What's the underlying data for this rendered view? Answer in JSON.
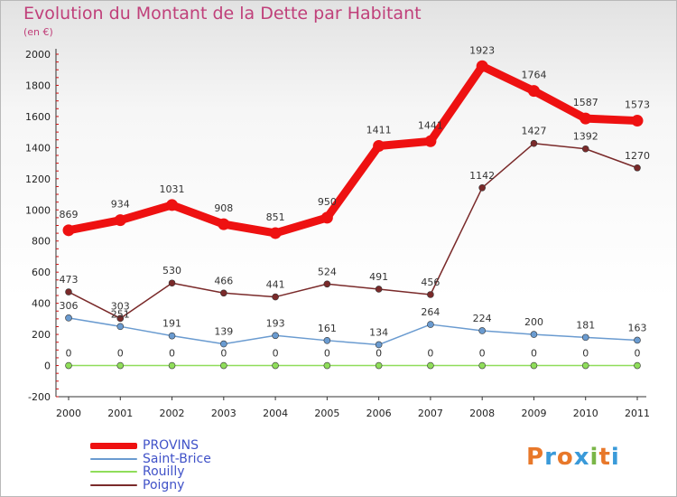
{
  "title": "Evolution du Montant de la Dette par Habitant",
  "unit_label": "(en €)",
  "logo_text": "Proxiti",
  "logo_colors": [
    "#e8782a",
    "#3a9ad9",
    "#e8782a",
    "#3a9ad9",
    "#7ab648",
    "#e8782a",
    "#3a9ad9"
  ],
  "chart_data": {
    "type": "line",
    "title": "Evolution du Montant de la Dette par Habitant",
    "ylabel": "(en €)",
    "xlabel": "",
    "x": [
      "2000",
      "2001",
      "2002",
      "2003",
      "2004",
      "2005",
      "2006",
      "2007",
      "2008",
      "2009",
      "2010",
      "2011"
    ],
    "ylim": [
      -200,
      2000
    ],
    "yticks": [
      "-200",
      "0",
      "200",
      "400",
      "600",
      "800",
      "1000",
      "1200",
      "1400",
      "1600",
      "1800",
      "2000"
    ],
    "grid": false,
    "legend_position": "bottom-left",
    "series": [
      {
        "name": "PROVINS",
        "color": "#ee1111",
        "values": [
          869,
          934,
          1031,
          908,
          851,
          950,
          1411,
          1441,
          1923,
          1764,
          1587,
          1573
        ]
      },
      {
        "name": "Saint-Brice",
        "color": "#6a9bd0",
        "values": [
          306,
          251,
          191,
          139,
          193,
          161,
          134,
          264,
          224,
          200,
          181,
          163
        ]
      },
      {
        "name": "Rouilly",
        "color": "#8fdd5a",
        "values": [
          0,
          0,
          0,
          0,
          0,
          0,
          0,
          0,
          0,
          0,
          0,
          0
        ]
      },
      {
        "name": "Poigny",
        "color": "#7a2a2a",
        "values": [
          473,
          303,
          530,
          466,
          441,
          524,
          491,
          456,
          1142,
          1427,
          1392,
          1270
        ]
      }
    ]
  }
}
